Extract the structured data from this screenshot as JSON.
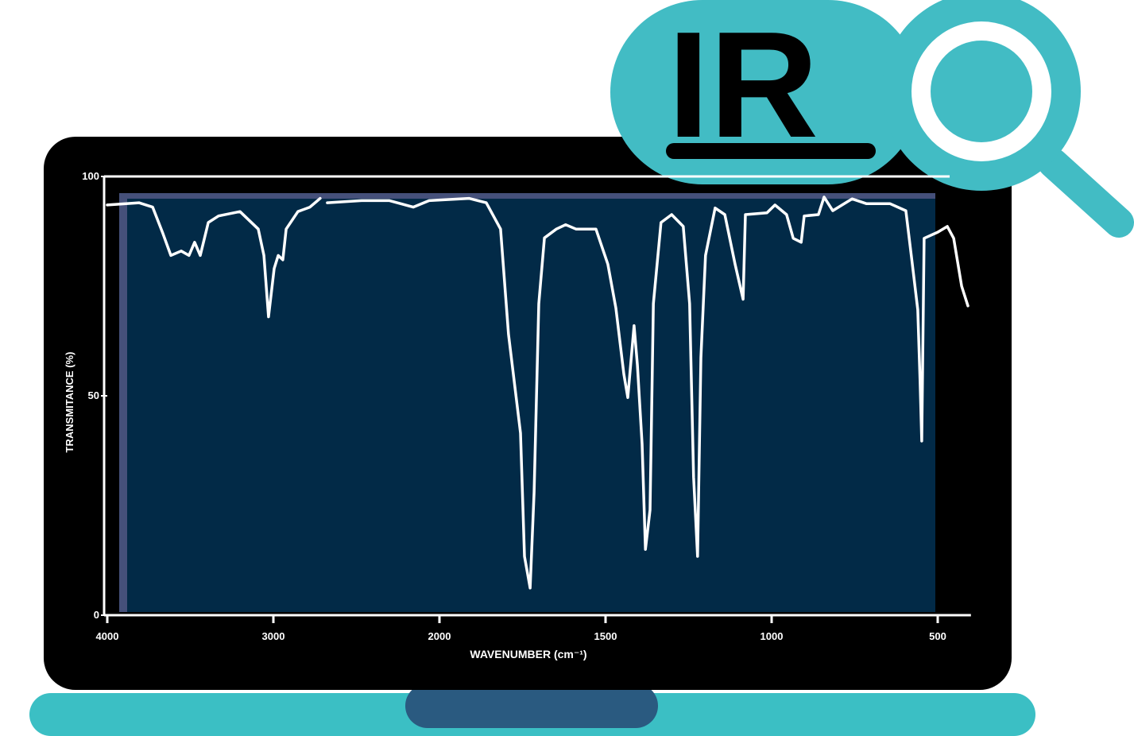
{
  "logo": {
    "text": "IR"
  },
  "chart_data": {
    "type": "line",
    "x_label": "WAVENUMBER (cm⁻¹)",
    "y_label": "TRANSMITANCE (%)",
    "xlim": [
      4000,
      400
    ],
    "ylim": [
      0,
      100
    ],
    "xticks": [
      4000,
      3000,
      2000,
      1500,
      1000,
      500
    ],
    "yticks": [
      0,
      50,
      100
    ],
    "x": [
      4000,
      3809,
      3727,
      3665,
      3617,
      3555,
      3508,
      3474,
      3440,
      3392,
      3330,
      3201,
      3091,
      3057,
      3029,
      2995,
      2971,
      2943,
      2923,
      2852,
      2780,
      2718,
      2700,
      2675,
      2469,
      2301,
      2158,
      2062,
      1911,
      1859,
      1816,
      1792,
      1756,
      1744,
      1727,
      1715,
      1701,
      1684,
      1648,
      1620,
      1589,
      1529,
      1493,
      1469,
      1445,
      1433,
      1414,
      1404,
      1390,
      1380,
      1366,
      1356,
      1333,
      1301,
      1266,
      1247,
      1235,
      1223,
      1213,
      1199,
      1170,
      1141,
      1110,
      1086,
      1079,
      1014,
      990,
      955,
      935,
      911,
      902,
      859,
      842,
      816,
      758,
      715,
      644,
      596,
      577,
      560,
      553,
      548,
      541,
      500,
      471,
      452,
      428,
      409
    ],
    "series": [
      {
        "color": "#ffffff",
        "values": [
          93.5,
          94,
          93,
          87,
          82,
          83,
          82,
          85,
          82,
          89.5,
          91,
          92,
          88,
          82,
          68,
          79,
          82,
          81,
          88,
          92,
          93,
          95,
          null,
          94,
          94.5,
          94.5,
          93,
          94.5,
          95,
          94,
          88,
          64,
          41.5,
          13.4,
          6.2,
          28,
          71,
          86,
          88,
          89,
          88,
          88,
          80,
          70,
          55,
          49.6,
          66,
          57,
          39,
          15,
          24,
          71,
          89.5,
          91.3,
          88.6,
          71,
          31.5,
          13.4,
          58.7,
          82,
          92.8,
          91.3,
          80,
          72,
          91.3,
          91.7,
          93.5,
          91.3,
          85.9,
          85,
          91,
          91.3,
          95.3,
          92.2,
          94.9,
          93.8,
          93.8,
          92.2,
          80.4,
          69.6,
          53.3,
          39.7,
          85.9,
          87.3,
          88.6,
          85.9,
          75,
          70.5
        ]
      }
    ]
  }
}
